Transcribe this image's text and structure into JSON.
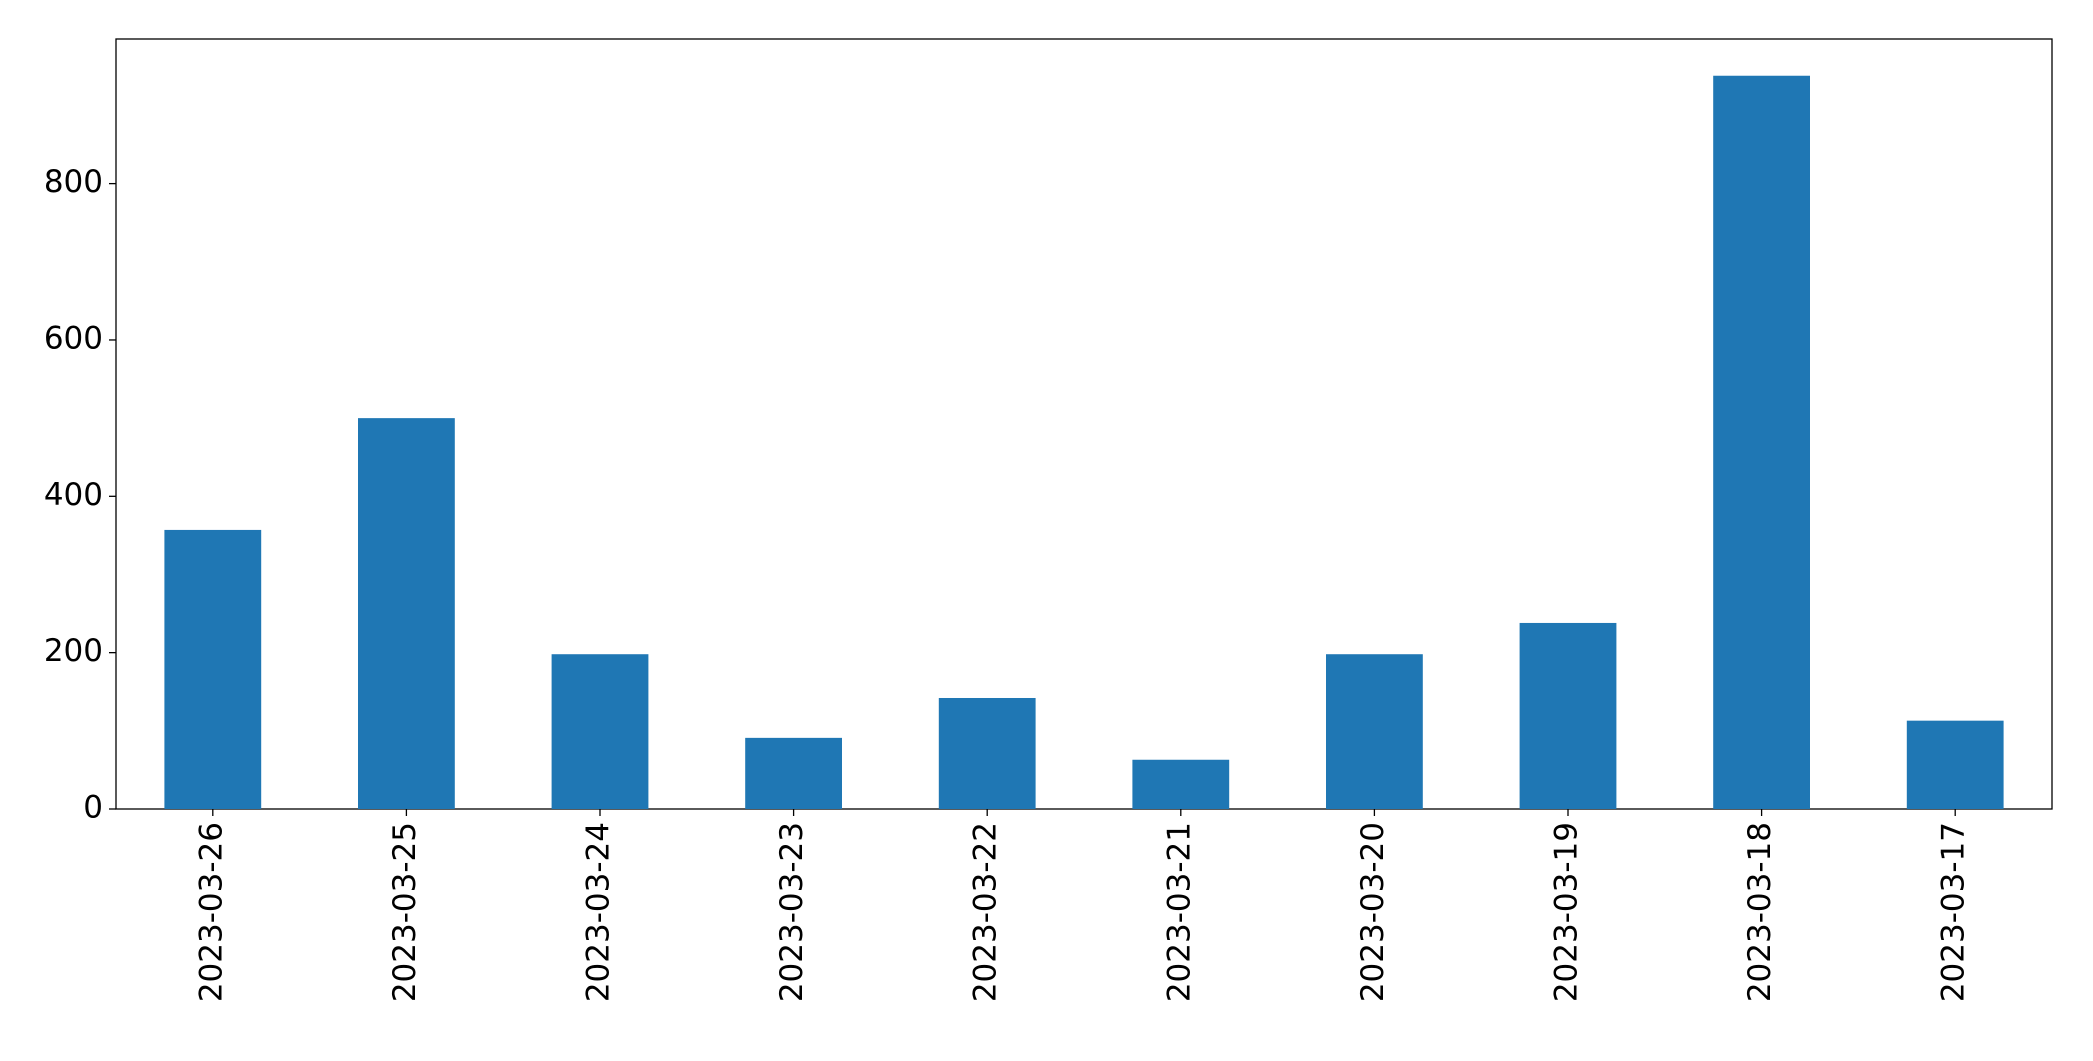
{
  "chart_data": {
    "type": "bar",
    "categories": [
      "2023-03-26",
      "2023-03-25",
      "2023-03-24",
      "2023-03-23",
      "2023-03-22",
      "2023-03-21",
      "2023-03-20",
      "2023-03-19",
      "2023-03-18",
      "2023-03-17"
    ],
    "values": [
      357,
      500,
      198,
      91,
      142,
      63,
      198,
      238,
      938,
      113
    ],
    "color": "#1f77b4",
    "ylim": [
      0,
      985
    ],
    "yticks": [
      0,
      200,
      400,
      600,
      800
    ],
    "grid": false
  }
}
